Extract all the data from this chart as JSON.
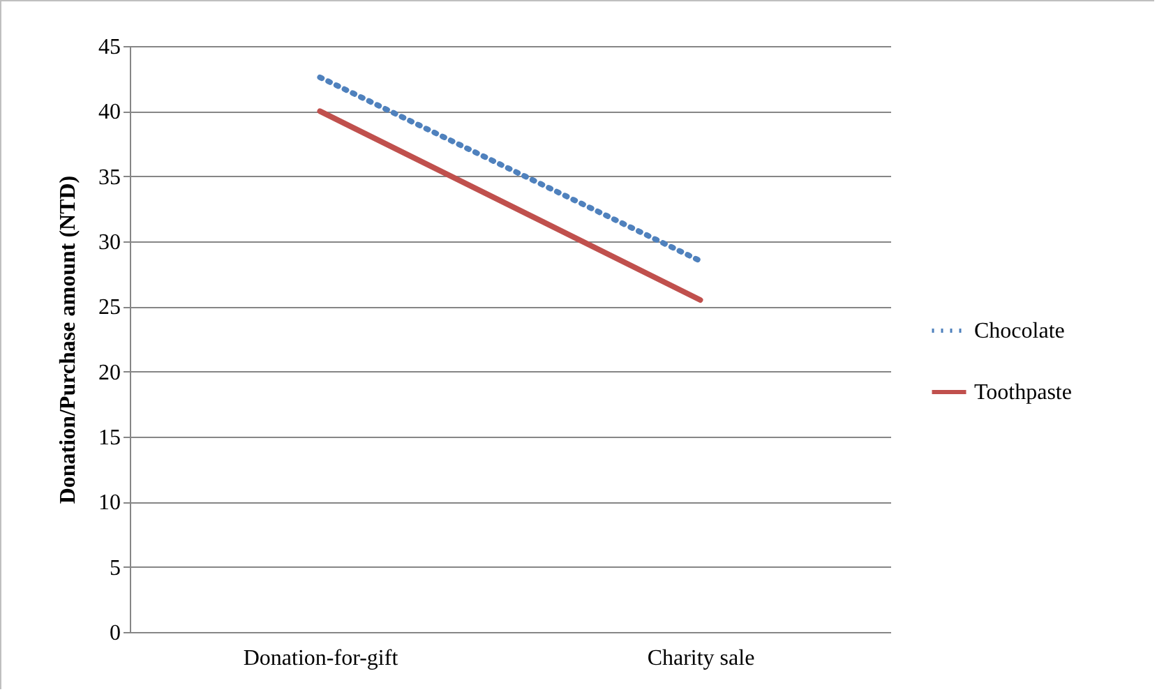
{
  "chart_data": {
    "type": "line",
    "ylabel": "Donation/Purchase amount (NTD)",
    "categories": [
      "Donation-for-gift",
      "Charity sale"
    ],
    "series": [
      {
        "name": "Chocolate",
        "color": "#4f81bd",
        "line_style": "dotted",
        "values": [
          42.6,
          28.5
        ]
      },
      {
        "name": "Toothpaste",
        "color": "#c0504d",
        "line_style": "solid",
        "values": [
          40,
          25.5
        ]
      }
    ],
    "ylim": [
      0,
      45
    ],
    "yticks": [
      0,
      5,
      10,
      15,
      20,
      25,
      30,
      35,
      40,
      45
    ],
    "grid": "y",
    "legend": "right",
    "marker": "none"
  }
}
